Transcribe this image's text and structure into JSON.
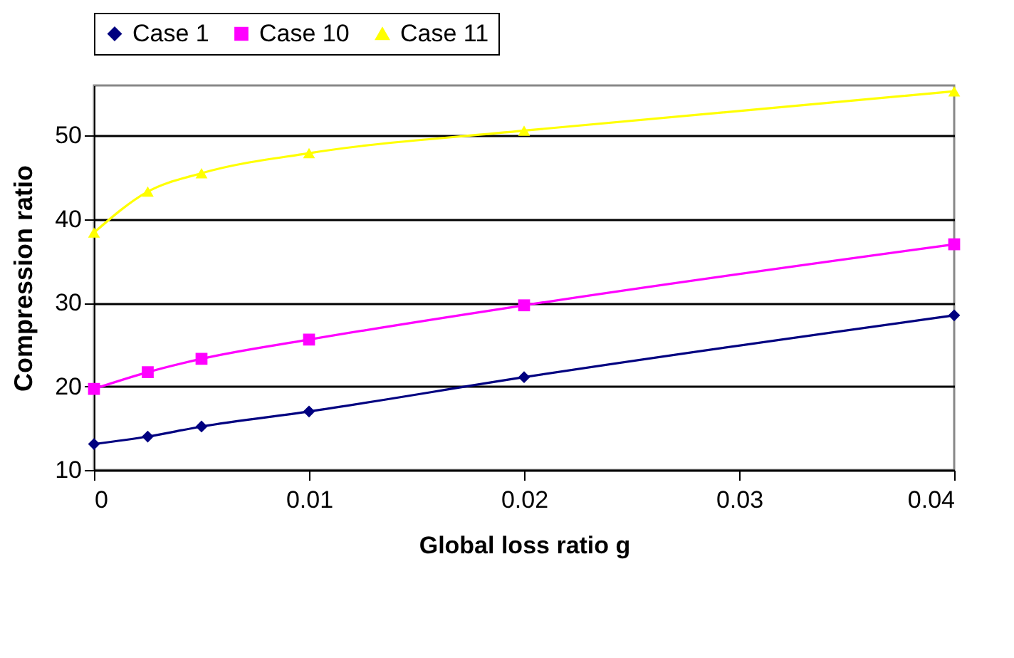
{
  "chart_data": {
    "type": "line",
    "xlabel": "Global loss ratio g",
    "ylabel": "Compression ratio",
    "x": [
      0,
      0.0025,
      0.005,
      0.01,
      0.02,
      0.04
    ],
    "series": [
      {
        "name": "Case 1",
        "color": "#000080",
        "marker": "diamond",
        "values": [
          13.1,
          14.0,
          15.2,
          17.0,
          21.1,
          28.5
        ]
      },
      {
        "name": "Case 10",
        "color": "#ff00ff",
        "marker": "square",
        "values": [
          19.7,
          21.7,
          23.3,
          25.6,
          29.7,
          37.0
        ]
      },
      {
        "name": "Case 11",
        "color": "#ffff00",
        "marker": "triangle",
        "values": [
          38.4,
          43.3,
          45.5,
          47.9,
          50.6,
          55.3
        ]
      }
    ],
    "xlim": [
      0,
      0.04
    ],
    "xticks": [
      0,
      0.01,
      0.02,
      0.03,
      0.04
    ],
    "ylim": [
      10,
      56
    ],
    "yticks": [
      10,
      20,
      30,
      40,
      50
    ],
    "grid": "y",
    "legend": "top"
  }
}
